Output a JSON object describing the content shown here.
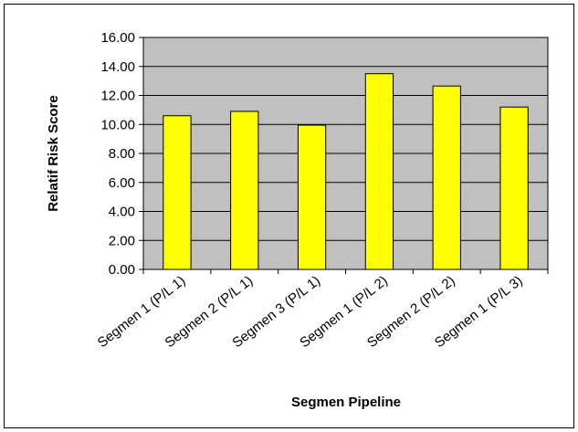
{
  "chart_data": {
    "type": "bar",
    "title": "",
    "xlabel": "Segmen Pipeline",
    "ylabel": "Relatif Risk Score",
    "categories": [
      "Segmen 1 (P/L 1)",
      "Segmen 2 (P/L 1)",
      "Segmen 3 (P/L 1)",
      "Segmen 1 (P/L 2)",
      "Segmen 2 (P/L 2)",
      "Segmen 1 (P/L 3)"
    ],
    "values": [
      10.6,
      10.9,
      9.95,
      13.5,
      12.65,
      11.2
    ],
    "ylim": [
      0,
      16
    ],
    "yticks": [
      "0.00",
      "2.00",
      "4.00",
      "6.00",
      "8.00",
      "10.00",
      "12.00",
      "14.00",
      "16.00"
    ],
    "grid": true,
    "legend": "none",
    "colors": {
      "bar_fill": "#ffff00",
      "bar_stroke": "#000000",
      "plot_background": "#c0c0c0",
      "gridline": "#000000"
    }
  }
}
